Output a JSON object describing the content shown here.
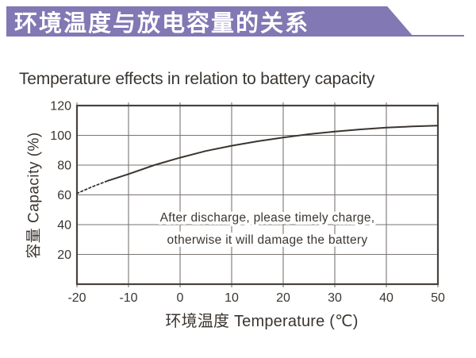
{
  "header": {
    "banner_title": "环境温度与放电容量的关系"
  },
  "colors": {
    "accent_purple": "#8178B4",
    "ink": "#3B3530",
    "grid_gray": "#7A7572",
    "border_gray": "#48423E"
  },
  "chart_data": {
    "type": "line",
    "title": "Temperature effects in relation to battery capacity",
    "xlabel": "环境温度 Temperature (℃)",
    "ylabel": "容量 Capacity (%)",
    "xlim": [
      -20,
      50
    ],
    "ylim": [
      0,
      120
    ],
    "x_ticks": [
      -20,
      -10,
      0,
      10,
      20,
      30,
      40,
      50
    ],
    "y_ticks": [
      20,
      40,
      60,
      80,
      100,
      120
    ],
    "grid": true,
    "legend_position": "none",
    "series": [
      {
        "name": "容量 Capacity (%)",
        "x": [
          -20,
          -17,
          -14,
          -10,
          -5,
          0,
          5,
          10,
          15,
          20,
          25,
          30,
          35,
          40,
          45,
          50
        ],
        "values": [
          61,
          65.5,
          69.5,
          74,
          80,
          85,
          89.5,
          93,
          96,
          98.5,
          100.8,
          102.5,
          104,
          105.2,
          106,
          106.5
        ],
        "dashed_below_x": -14
      }
    ],
    "annotation": {
      "lines": [
        "After discharge, please timely charge,",
        "otherwise it will damage the battery"
      ]
    }
  }
}
